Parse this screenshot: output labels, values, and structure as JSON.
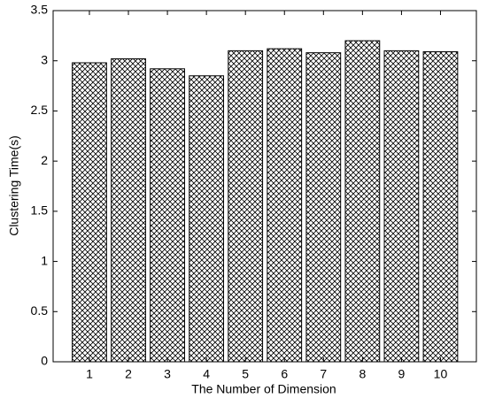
{
  "chart_data": {
    "type": "bar",
    "x_label": "The Number of Dimension",
    "y_label": "Clustering Time(s)",
    "categories": [
      "1",
      "2",
      "3",
      "4",
      "5",
      "6",
      "7",
      "8",
      "9",
      "10"
    ],
    "values": [
      2.98,
      3.02,
      2.92,
      2.85,
      3.1,
      3.12,
      3.08,
      3.2,
      3.1,
      3.09
    ],
    "color": "#000000",
    "ylim": [
      0,
      3.5
    ],
    "yticks": [
      0,
      0.5,
      1,
      1.5,
      2,
      2.5,
      3,
      3.5
    ],
    "grid": false
  }
}
